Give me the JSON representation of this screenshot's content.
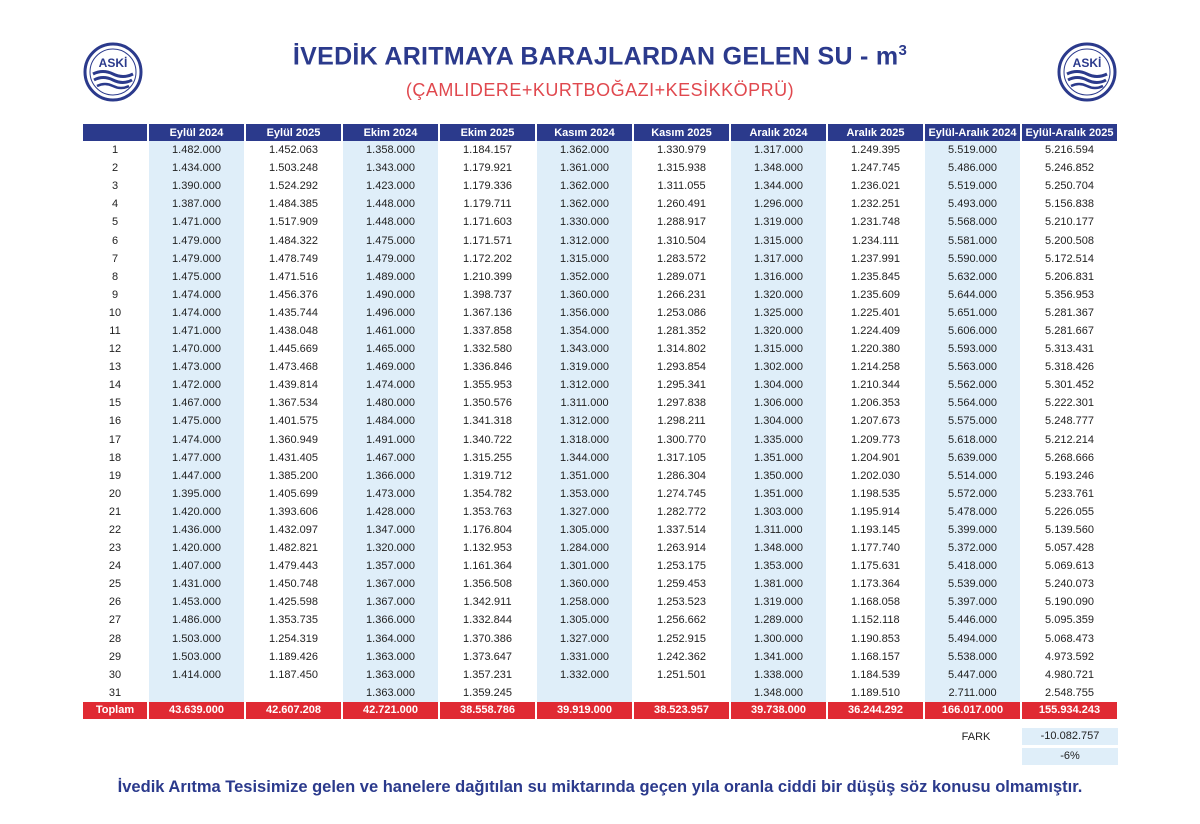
{
  "header": {
    "title": "İVEDİK ARITMAYA BARAJLARDAN GELEN SU - m",
    "title_sup": "3",
    "subtitle": "(ÇAMLIDERE+KURTBOĞAZI+KESİKKÖPRÜ)",
    "logo_text": "ASKİ",
    "colors": {
      "title": "#2b3a8c",
      "subtitle": "#e0484e",
      "header_bg": "#2b3a8c",
      "total_bg": "#e02a33",
      "cell_tint": "#dfeef9"
    }
  },
  "table": {
    "columns": [
      "",
      "Eylül 2024",
      "Eylül 2025",
      "Ekim 2024",
      "Ekim 2025",
      "Kasım 2024",
      "Kasım 2025",
      "Aralık 2024",
      "Aralık 2025",
      "Eylül-Aralık 2024",
      "Eylül-Aralık 2025"
    ],
    "rows": [
      [
        "1",
        "1.482.000",
        "1.452.063",
        "1.358.000",
        "1.184.157",
        "1.362.000",
        "1.330.979",
        "1.317.000",
        "1.249.395",
        "5.519.000",
        "5.216.594"
      ],
      [
        "2",
        "1.434.000",
        "1.503.248",
        "1.343.000",
        "1.179.921",
        "1.361.000",
        "1.315.938",
        "1.348.000",
        "1.247.745",
        "5.486.000",
        "5.246.852"
      ],
      [
        "3",
        "1.390.000",
        "1.524.292",
        "1.423.000",
        "1.179.336",
        "1.362.000",
        "1.311.055",
        "1.344.000",
        "1.236.021",
        "5.519.000",
        "5.250.704"
      ],
      [
        "4",
        "1.387.000",
        "1.484.385",
        "1.448.000",
        "1.179.711",
        "1.362.000",
        "1.260.491",
        "1.296.000",
        "1.232.251",
        "5.493.000",
        "5.156.838"
      ],
      [
        "5",
        "1.471.000",
        "1.517.909",
        "1.448.000",
        "1.171.603",
        "1.330.000",
        "1.288.917",
        "1.319.000",
        "1.231.748",
        "5.568.000",
        "5.210.177"
      ],
      [
        "6",
        "1.479.000",
        "1.484.322",
        "1.475.000",
        "1.171.571",
        "1.312.000",
        "1.310.504",
        "1.315.000",
        "1.234.111",
        "5.581.000",
        "5.200.508"
      ],
      [
        "7",
        "1.479.000",
        "1.478.749",
        "1.479.000",
        "1.172.202",
        "1.315.000",
        "1.283.572",
        "1.317.000",
        "1.237.991",
        "5.590.000",
        "5.172.514"
      ],
      [
        "8",
        "1.475.000",
        "1.471.516",
        "1.489.000",
        "1.210.399",
        "1.352.000",
        "1.289.071",
        "1.316.000",
        "1.235.845",
        "5.632.000",
        "5.206.831"
      ],
      [
        "9",
        "1.474.000",
        "1.456.376",
        "1.490.000",
        "1.398.737",
        "1.360.000",
        "1.266.231",
        "1.320.000",
        "1.235.609",
        "5.644.000",
        "5.356.953"
      ],
      [
        "10",
        "1.474.000",
        "1.435.744",
        "1.496.000",
        "1.367.136",
        "1.356.000",
        "1.253.086",
        "1.325.000",
        "1.225.401",
        "5.651.000",
        "5.281.367"
      ],
      [
        "11",
        "1.471.000",
        "1.438.048",
        "1.461.000",
        "1.337.858",
        "1.354.000",
        "1.281.352",
        "1.320.000",
        "1.224.409",
        "5.606.000",
        "5.281.667"
      ],
      [
        "12",
        "1.470.000",
        "1.445.669",
        "1.465.000",
        "1.332.580",
        "1.343.000",
        "1.314.802",
        "1.315.000",
        "1.220.380",
        "5.593.000",
        "5.313.431"
      ],
      [
        "13",
        "1.473.000",
        "1.473.468",
        "1.469.000",
        "1.336.846",
        "1.319.000",
        "1.293.854",
        "1.302.000",
        "1.214.258",
        "5.563.000",
        "5.318.426"
      ],
      [
        "14",
        "1.472.000",
        "1.439.814",
        "1.474.000",
        "1.355.953",
        "1.312.000",
        "1.295.341",
        "1.304.000",
        "1.210.344",
        "5.562.000",
        "5.301.452"
      ],
      [
        "15",
        "1.467.000",
        "1.367.534",
        "1.480.000",
        "1.350.576",
        "1.311.000",
        "1.297.838",
        "1.306.000",
        "1.206.353",
        "5.564.000",
        "5.222.301"
      ],
      [
        "16",
        "1.475.000",
        "1.401.575",
        "1.484.000",
        "1.341.318",
        "1.312.000",
        "1.298.211",
        "1.304.000",
        "1.207.673",
        "5.575.000",
        "5.248.777"
      ],
      [
        "17",
        "1.474.000",
        "1.360.949",
        "1.491.000",
        "1.340.722",
        "1.318.000",
        "1.300.770",
        "1.335.000",
        "1.209.773",
        "5.618.000",
        "5.212.214"
      ],
      [
        "18",
        "1.477.000",
        "1.431.405",
        "1.467.000",
        "1.315.255",
        "1.344.000",
        "1.317.105",
        "1.351.000",
        "1.204.901",
        "5.639.000",
        "5.268.666"
      ],
      [
        "19",
        "1.447.000",
        "1.385.200",
        "1.366.000",
        "1.319.712",
        "1.351.000",
        "1.286.304",
        "1.350.000",
        "1.202.030",
        "5.514.000",
        "5.193.246"
      ],
      [
        "20",
        "1.395.000",
        "1.405.699",
        "1.473.000",
        "1.354.782",
        "1.353.000",
        "1.274.745",
        "1.351.000",
        "1.198.535",
        "5.572.000",
        "5.233.761"
      ],
      [
        "21",
        "1.420.000",
        "1.393.606",
        "1.428.000",
        "1.353.763",
        "1.327.000",
        "1.282.772",
        "1.303.000",
        "1.195.914",
        "5.478.000",
        "5.226.055"
      ],
      [
        "22",
        "1.436.000",
        "1.432.097",
        "1.347.000",
        "1.176.804",
        "1.305.000",
        "1.337.514",
        "1.311.000",
        "1.193.145",
        "5.399.000",
        "5.139.560"
      ],
      [
        "23",
        "1.420.000",
        "1.482.821",
        "1.320.000",
        "1.132.953",
        "1.284.000",
        "1.263.914",
        "1.348.000",
        "1.177.740",
        "5.372.000",
        "5.057.428"
      ],
      [
        "24",
        "1.407.000",
        "1.479.443",
        "1.357.000",
        "1.161.364",
        "1.301.000",
        "1.253.175",
        "1.353.000",
        "1.175.631",
        "5.418.000",
        "5.069.613"
      ],
      [
        "25",
        "1.431.000",
        "1.450.748",
        "1.367.000",
        "1.356.508",
        "1.360.000",
        "1.259.453",
        "1.381.000",
        "1.173.364",
        "5.539.000",
        "5.240.073"
      ],
      [
        "26",
        "1.453.000",
        "1.425.598",
        "1.367.000",
        "1.342.911",
        "1.258.000",
        "1.253.523",
        "1.319.000",
        "1.168.058",
        "5.397.000",
        "5.190.090"
      ],
      [
        "27",
        "1.486.000",
        "1.353.735",
        "1.366.000",
        "1.332.844",
        "1.305.000",
        "1.256.662",
        "1.289.000",
        "1.152.118",
        "5.446.000",
        "5.095.359"
      ],
      [
        "28",
        "1.503.000",
        "1.254.319",
        "1.364.000",
        "1.370.386",
        "1.327.000",
        "1.252.915",
        "1.300.000",
        "1.190.853",
        "5.494.000",
        "5.068.473"
      ],
      [
        "29",
        "1.503.000",
        "1.189.426",
        "1.363.000",
        "1.373.647",
        "1.331.000",
        "1.242.362",
        "1.341.000",
        "1.168.157",
        "5.538.000",
        "4.973.592"
      ],
      [
        "30",
        "1.414.000",
        "1.187.450",
        "1.363.000",
        "1.357.231",
        "1.332.000",
        "1.251.501",
        "1.338.000",
        "1.184.539",
        "5.447.000",
        "4.980.721"
      ],
      [
        "31",
        "",
        "",
        "1.363.000",
        "1.359.245",
        "",
        "",
        "1.348.000",
        "1.189.510",
        "2.711.000",
        "2.548.755"
      ]
    ],
    "total": [
      "Toplam",
      "43.639.000",
      "42.607.208",
      "42.721.000",
      "38.558.786",
      "39.919.000",
      "38.523.957",
      "39.738.000",
      "36.244.292",
      "166.017.000",
      "155.934.243"
    ]
  },
  "fark": {
    "label": "FARK",
    "value": "-10.082.757",
    "percent": "-6%"
  },
  "footer": "İvedik Arıtma Tesisimize gelen ve hanelere dağıtılan su miktarında geçen yıla oranla ciddi bir düşüş söz konusu olmamıştır."
}
